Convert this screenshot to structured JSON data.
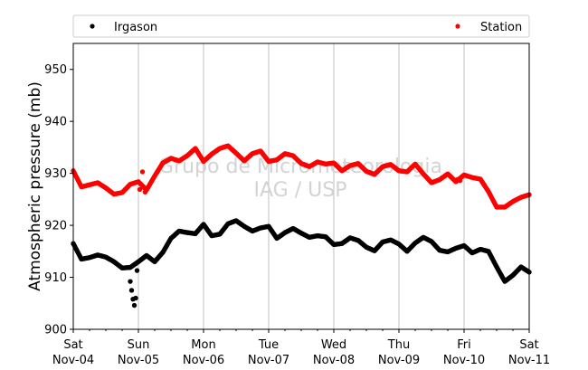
{
  "chart_data": {
    "type": "scatter",
    "ylabel": "Atmospheric pressure (mb)",
    "ylim": [
      900,
      955
    ],
    "yticks": [
      900,
      910,
      920,
      930,
      940,
      950
    ],
    "xticks": [
      {
        "day": "Sat",
        "date": "Nov-04"
      },
      {
        "day": "Sun",
        "date": "Nov-05"
      },
      {
        "day": "Mon",
        "date": "Nov-06"
      },
      {
        "day": "Tue",
        "date": "Nov-07"
      },
      {
        "day": "Wed",
        "date": "Nov-08"
      },
      {
        "day": "Thu",
        "date": "Nov-09"
      },
      {
        "day": "Fri",
        "date": "Nov-10"
      },
      {
        "day": "Sat",
        "date": "Nov-11"
      }
    ],
    "xrange": [
      "Nov-04 00:00",
      "Nov-11 00:00"
    ],
    "grid": "vertical",
    "legend_position": "top",
    "watermark": [
      "Grupo de Micrometeorologia",
      "IAG / USP"
    ],
    "series": [
      {
        "name": "Irgason",
        "color": "#000000",
        "x": [
          "Nov-04 00:00",
          "Nov-04 03:00",
          "Nov-04 06:00",
          "Nov-04 09:00",
          "Nov-04 12:00",
          "Nov-04 15:00",
          "Nov-04 18:00",
          "Nov-04 21:00",
          "Nov-05 00:00",
          "Nov-05 03:00",
          "Nov-05 06:00",
          "Nov-05 09:00",
          "Nov-05 12:00",
          "Nov-05 15:00",
          "Nov-05 18:00",
          "Nov-05 21:00",
          "Nov-06 00:00",
          "Nov-06 03:00",
          "Nov-06 06:00",
          "Nov-06 09:00",
          "Nov-06 12:00",
          "Nov-06 15:00",
          "Nov-06 18:00",
          "Nov-06 21:00",
          "Nov-07 00:00",
          "Nov-07 03:00",
          "Nov-07 06:00",
          "Nov-07 09:00",
          "Nov-07 12:00",
          "Nov-07 15:00",
          "Nov-07 18:00",
          "Nov-07 21:00",
          "Nov-08 00:00",
          "Nov-08 03:00",
          "Nov-08 06:00",
          "Nov-08 09:00",
          "Nov-08 12:00",
          "Nov-08 15:00",
          "Nov-08 18:00",
          "Nov-08 21:00",
          "Nov-09 00:00",
          "Nov-09 03:00",
          "Nov-09 06:00",
          "Nov-09 09:00",
          "Nov-09 12:00",
          "Nov-09 15:00",
          "Nov-09 18:00",
          "Nov-09 21:00",
          "Nov-10 00:00",
          "Nov-10 03:00",
          "Nov-10 06:00",
          "Nov-10 09:00",
          "Nov-10 12:00",
          "Nov-10 15:00",
          "Nov-10 18:00",
          "Nov-10 21:00",
          "Nov-11 00:00"
        ],
        "y": [
          916.5,
          913.5,
          913.8,
          914.3,
          913.9,
          913.0,
          911.8,
          911.9,
          913.0,
          914.2,
          913.0,
          914.8,
          917.5,
          918.9,
          918.6,
          918.4,
          920.2,
          918.0,
          918.3,
          920.3,
          920.9,
          919.8,
          918.9,
          919.5,
          919.8,
          917.5,
          918.6,
          919.4,
          918.5,
          917.7,
          918.0,
          917.8,
          916.3,
          916.5,
          917.6,
          917.1,
          915.8,
          915.1,
          916.8,
          917.2,
          916.4,
          915.0,
          916.6,
          917.7,
          916.9,
          915.2,
          914.9,
          915.6,
          916.1,
          914.7,
          915.4,
          915.0,
          912.0,
          909.2,
          910.4,
          912.0,
          911.0
        ],
        "dropout": {
          "x": [
            "Nov-04 21:00",
            "Nov-04 21:30",
            "Nov-04 22:00",
            "Nov-04 22:30",
            "Nov-04 23:00",
            "Nov-04 23:30"
          ],
          "y": [
            909.2,
            907.5,
            905.8,
            904.6,
            906.0,
            911.3
          ]
        }
      },
      {
        "name": "Station",
        "color": "#ff0000",
        "x": [
          "Nov-04 00:00",
          "Nov-04 03:00",
          "Nov-04 06:00",
          "Nov-04 09:00",
          "Nov-04 12:00",
          "Nov-04 15:00",
          "Nov-04 18:00",
          "Nov-04 21:00",
          "Nov-05 00:00",
          "Nov-05 03:00",
          "Nov-05 06:00",
          "Nov-05 09:00",
          "Nov-05 12:00",
          "Nov-05 15:00",
          "Nov-05 18:00",
          "Nov-05 21:00",
          "Nov-06 00:00",
          "Nov-06 03:00",
          "Nov-06 06:00",
          "Nov-06 09:00",
          "Nov-06 12:00",
          "Nov-06 15:00",
          "Nov-06 18:00",
          "Nov-06 21:00",
          "Nov-07 00:00",
          "Nov-07 03:00",
          "Nov-07 06:00",
          "Nov-07 09:00",
          "Nov-07 12:00",
          "Nov-07 15:00",
          "Nov-07 18:00",
          "Nov-07 21:00",
          "Nov-08 00:00",
          "Nov-08 03:00",
          "Nov-08 06:00",
          "Nov-08 09:00",
          "Nov-08 12:00",
          "Nov-08 15:00",
          "Nov-08 18:00",
          "Nov-08 21:00",
          "Nov-09 00:00",
          "Nov-09 03:00",
          "Nov-09 06:00",
          "Nov-09 09:00",
          "Nov-09 12:00",
          "Nov-09 15:00",
          "Nov-09 18:00",
          "Nov-09 21:00",
          "Nov-10 00:00",
          "Nov-10 03:00",
          "Nov-10 06:00",
          "Nov-10 09:00",
          "Nov-10 12:00",
          "Nov-10 15:00",
          "Nov-10 18:00",
          "Nov-10 21:00",
          "Nov-11 00:00"
        ],
        "y": [
          930.5,
          927.4,
          927.8,
          928.2,
          927.2,
          926.0,
          926.3,
          927.9,
          928.4,
          926.8,
          929.5,
          932.0,
          932.9,
          932.4,
          933.4,
          934.8,
          932.3,
          933.7,
          934.8,
          935.3,
          933.9,
          932.4,
          933.8,
          934.3,
          932.3,
          932.6,
          933.8,
          933.4,
          931.9,
          931.3,
          932.2,
          931.8,
          932.0,
          930.5,
          931.5,
          931.9,
          930.4,
          929.8,
          931.3,
          931.7,
          930.5,
          930.3,
          931.8,
          929.9,
          928.2,
          928.8,
          929.9,
          928.4,
          929.7,
          929.2,
          928.9,
          926.5,
          923.5,
          923.5,
          924.6,
          925.4,
          925.9
        ],
        "noise": {
          "x": [
            "Nov-05 00:30",
            "Nov-05 01:30",
            "Nov-05 02:30",
            "Nov-09 21:30",
            "Nov-09 22:30"
          ],
          "y": [
            926.9,
            930.3,
            926.4,
            928.8,
            928.6
          ]
        }
      }
    ]
  }
}
